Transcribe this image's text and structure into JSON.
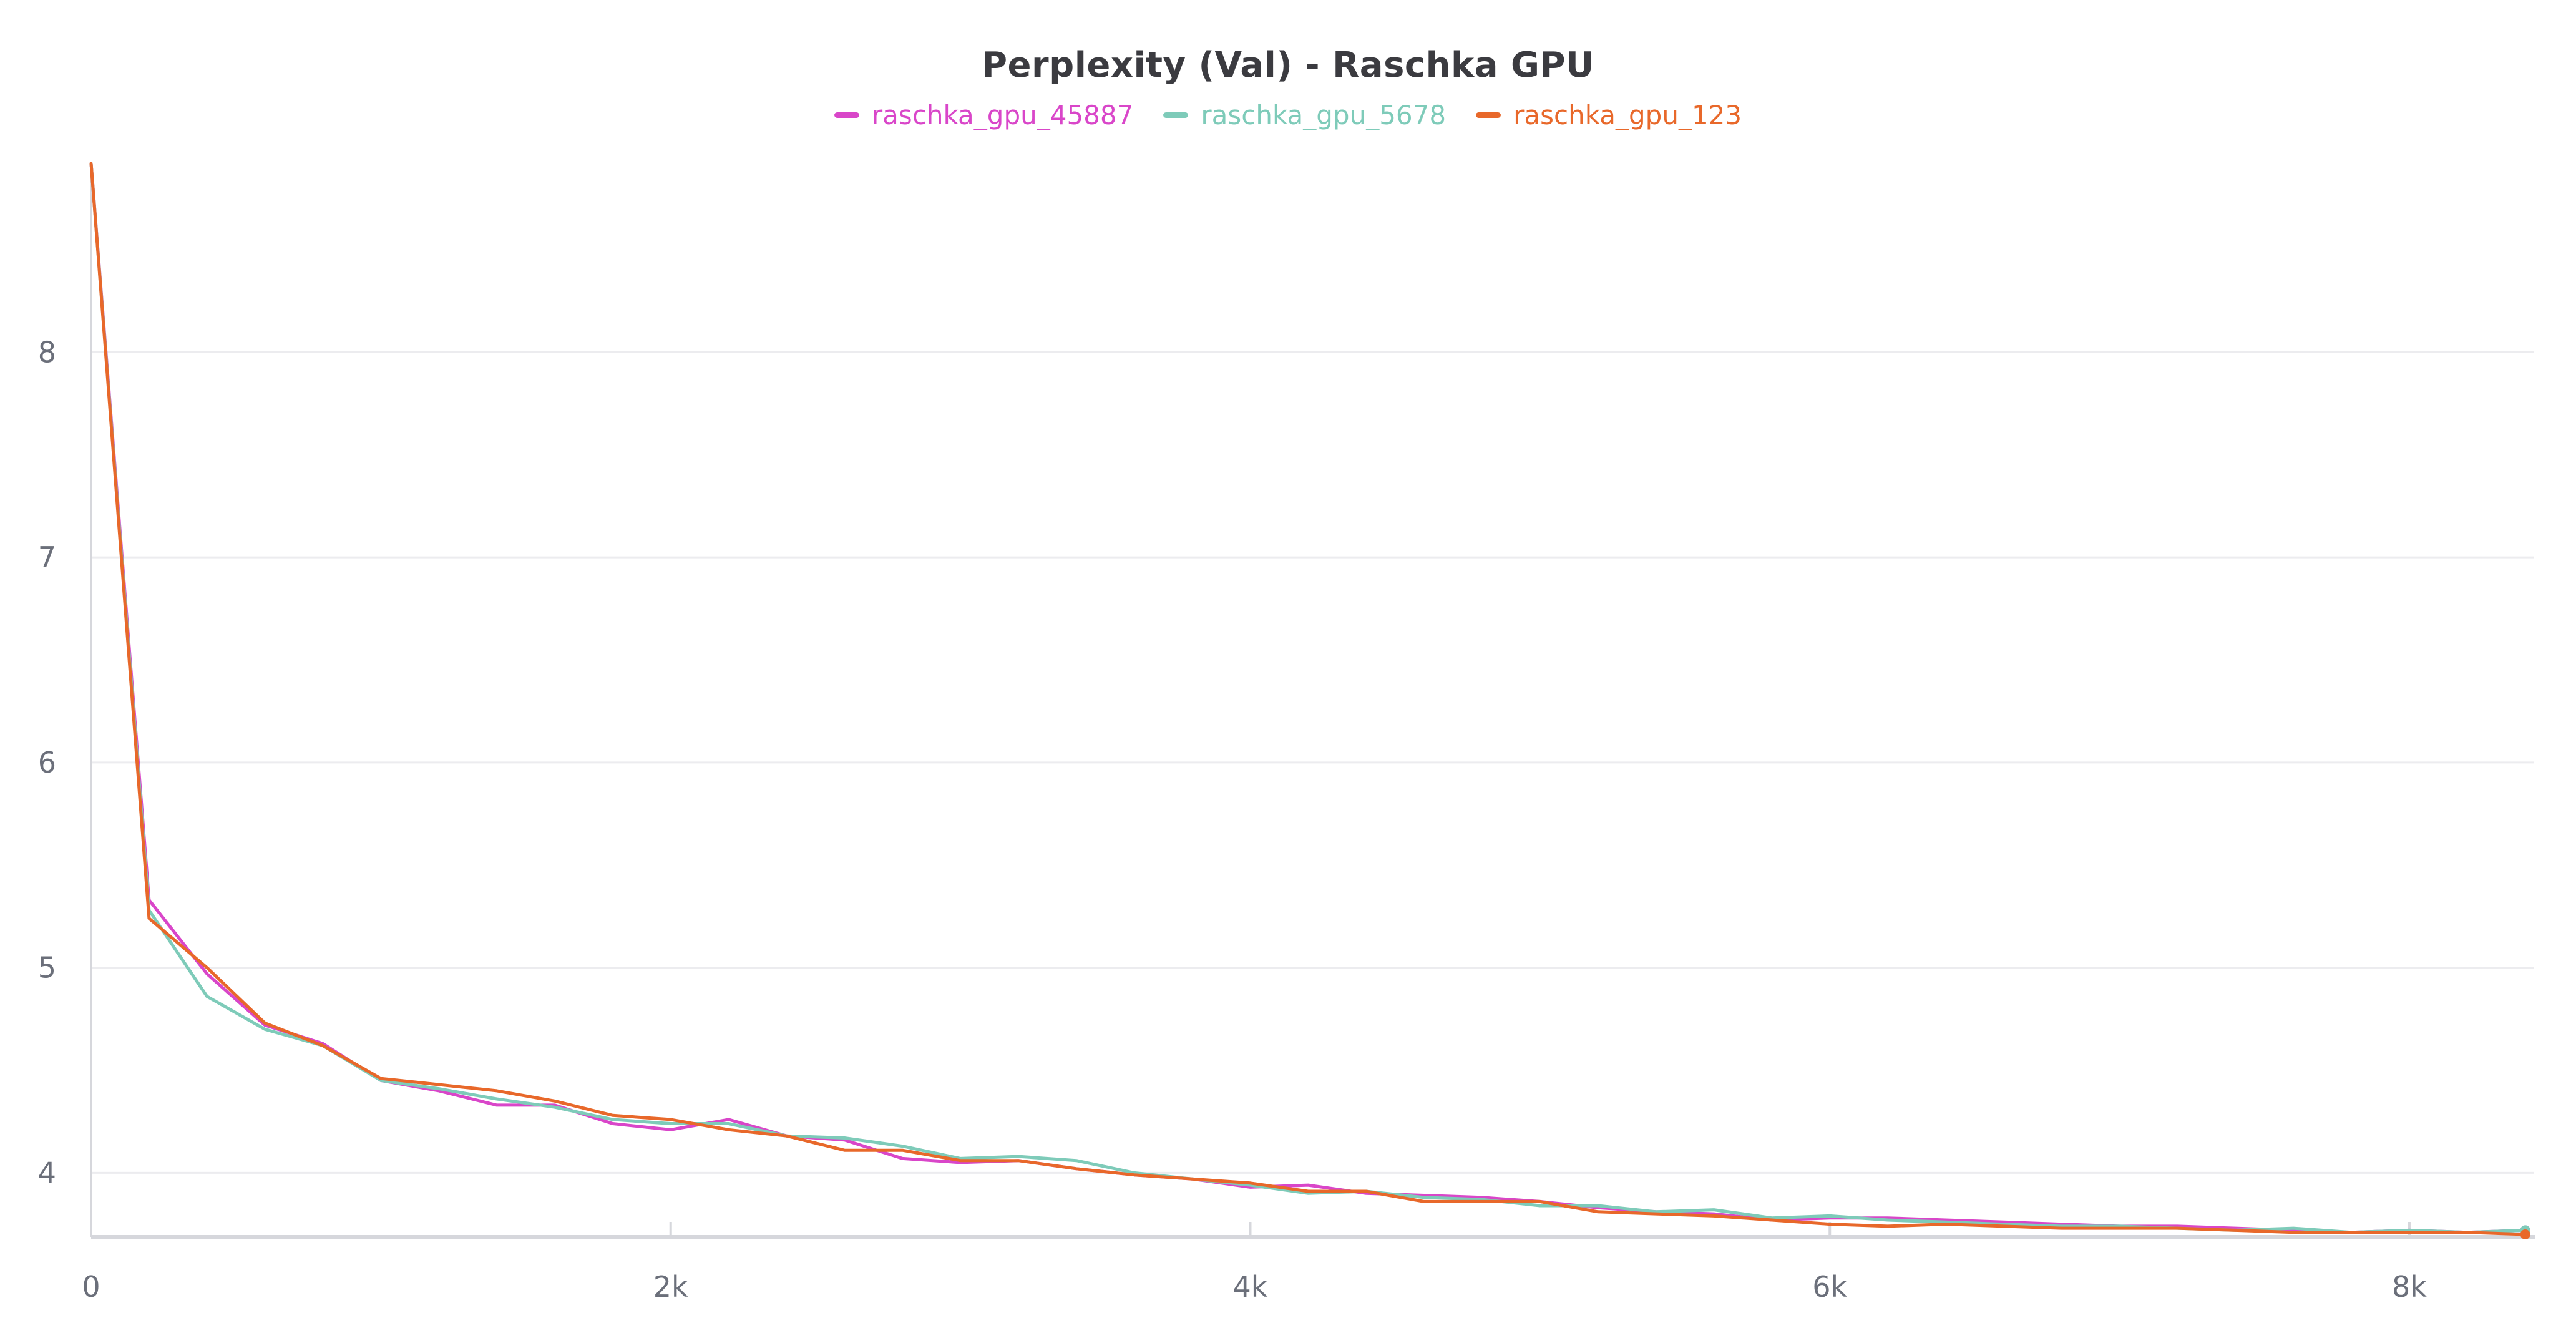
{
  "chart_data": {
    "type": "line",
    "title": "Perplexity (Val) - Raschka GPU",
    "xlabel": "",
    "ylabel": "",
    "xlim": [
      0,
      8420
    ],
    "ylim": [
      3.7,
      8.92
    ],
    "x_ticks": [
      {
        "value": 0,
        "label": "0"
      },
      {
        "value": 2000,
        "label": "2k"
      },
      {
        "value": 4000,
        "label": "4k"
      },
      {
        "value": 6000,
        "label": "6k"
      },
      {
        "value": 8000,
        "label": "8k"
      }
    ],
    "y_ticks": [
      {
        "value": 4,
        "label": "4"
      },
      {
        "value": 5,
        "label": "5"
      },
      {
        "value": 6,
        "label": "6"
      },
      {
        "value": 7,
        "label": "7"
      },
      {
        "value": 8,
        "label": "8"
      }
    ],
    "grid": true,
    "legend_position": "top-center",
    "x": [
      0,
      200,
      400,
      600,
      800,
      1000,
      1200,
      1400,
      1600,
      1800,
      2000,
      2200,
      2400,
      2600,
      2800,
      3000,
      3200,
      3400,
      3600,
      3800,
      4000,
      4200,
      4400,
      4600,
      4800,
      5000,
      5200,
      5400,
      5600,
      5800,
      6000,
      6200,
      6400,
      6600,
      6800,
      7000,
      7200,
      7400,
      7600,
      7800,
      8000,
      8200,
      8400
    ],
    "series": [
      {
        "name": "raschka_gpu_45887",
        "color": "#d946c9",
        "values": [
          8.92,
          5.33,
          4.97,
          4.72,
          4.63,
          4.45,
          4.4,
          4.33,
          4.33,
          4.24,
          4.21,
          4.26,
          4.18,
          4.16,
          4.07,
          4.05,
          4.06,
          4.02,
          3.99,
          3.97,
          3.93,
          3.94,
          3.9,
          3.89,
          3.88,
          3.86,
          3.83,
          3.81,
          3.8,
          3.77,
          3.78,
          3.78,
          3.77,
          3.76,
          3.75,
          3.74,
          3.74,
          3.73,
          3.72,
          3.71,
          3.72,
          3.71,
          3.72
        ]
      },
      {
        "name": "raschka_gpu_5678",
        "color": "#7ecbb9",
        "values": [
          8.92,
          5.28,
          4.86,
          4.7,
          4.62,
          4.45,
          4.41,
          4.36,
          4.32,
          4.26,
          4.24,
          4.24,
          4.18,
          4.17,
          4.13,
          4.07,
          4.08,
          4.06,
          4.0,
          3.97,
          3.94,
          3.9,
          3.91,
          3.88,
          3.87,
          3.84,
          3.84,
          3.81,
          3.82,
          3.78,
          3.79,
          3.77,
          3.76,
          3.75,
          3.74,
          3.74,
          3.73,
          3.72,
          3.73,
          3.71,
          3.72,
          3.71,
          3.72
        ]
      },
      {
        "name": "raschka_gpu_123",
        "color": "#e8682a",
        "values": [
          8.92,
          5.24,
          5.0,
          4.73,
          4.62,
          4.46,
          4.43,
          4.4,
          4.35,
          4.28,
          4.26,
          4.21,
          4.18,
          4.11,
          4.11,
          4.06,
          4.06,
          4.02,
          3.99,
          3.97,
          3.95,
          3.91,
          3.91,
          3.86,
          3.86,
          3.86,
          3.81,
          3.8,
          3.79,
          3.77,
          3.75,
          3.74,
          3.75,
          3.74,
          3.73,
          3.73,
          3.73,
          3.72,
          3.71,
          3.71,
          3.71,
          3.71,
          3.7
        ]
      }
    ]
  }
}
